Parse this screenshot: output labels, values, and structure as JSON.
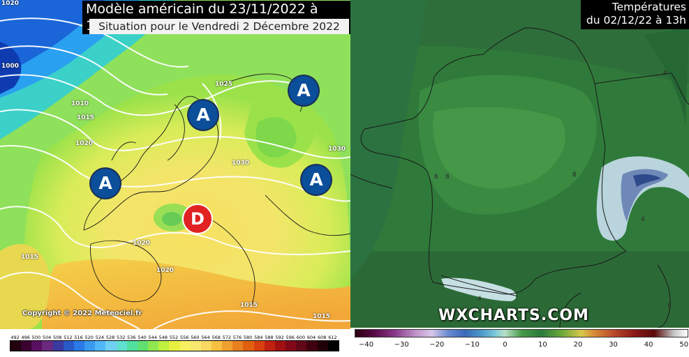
{
  "left_map": {
    "title": "Modèle américain du 23/11/2022 à 12h",
    "subtitle": "Situation pour le Vendredi 2 Décembre 2022",
    "pressure_highs": [
      "A",
      "A",
      "A",
      "A"
    ],
    "pressure_low": "D",
    "isobar_labels": [
      "1020",
      "1000",
      "1010",
      "1015",
      "1020",
      "1025",
      "1030",
      "1030",
      "1020",
      "1015",
      "1020",
      "1015",
      "1015"
    ],
    "copyright": "Copyright © 2022 Meteociel.fr",
    "colorbar_labels": [
      "492",
      "496",
      "500",
      "504",
      "508",
      "512",
      "516",
      "520",
      "524",
      "528",
      "532",
      "536",
      "540",
      "544",
      "548",
      "552",
      "556",
      "560",
      "564",
      "568",
      "572",
      "576",
      "580",
      "584",
      "588",
      "592",
      "596",
      "600",
      "604",
      "608",
      "612"
    ],
    "colorbar_colors": [
      "#220010",
      "#3a0030",
      "#5a1060",
      "#6a2a80",
      "#3a3aa0",
      "#2a5ac8",
      "#2a7ae8",
      "#3a9af0",
      "#50b8f8",
      "#70d0f0",
      "#60e0d0",
      "#50e0a0",
      "#60e070",
      "#90e850",
      "#c0f040",
      "#e8f040",
      "#f8f060",
      "#f8e870",
      "#f8d860",
      "#f8c040",
      "#f0a030",
      "#e88020",
      "#e06010",
      "#d84010",
      "#c02010",
      "#a01010",
      "#800818",
      "#600818",
      "#400010",
      "#200008",
      "#000000"
    ]
  },
  "right_map": {
    "title_line1": "Températures",
    "title_line2": "du 02/12/22 à 13h",
    "watermark": "WXCHARTS.COM",
    "grid_labels": [
      "8",
      "8",
      "4",
      "4",
      "4",
      "8",
      "8"
    ],
    "colorbar_ticks": [
      "−40",
      "−30",
      "−20",
      "−10",
      "0",
      "10",
      "20",
      "30",
      "40",
      "50"
    ]
  },
  "colors": {
    "hp_blue": "#0b4e9a",
    "lp_red": "#e02222"
  }
}
